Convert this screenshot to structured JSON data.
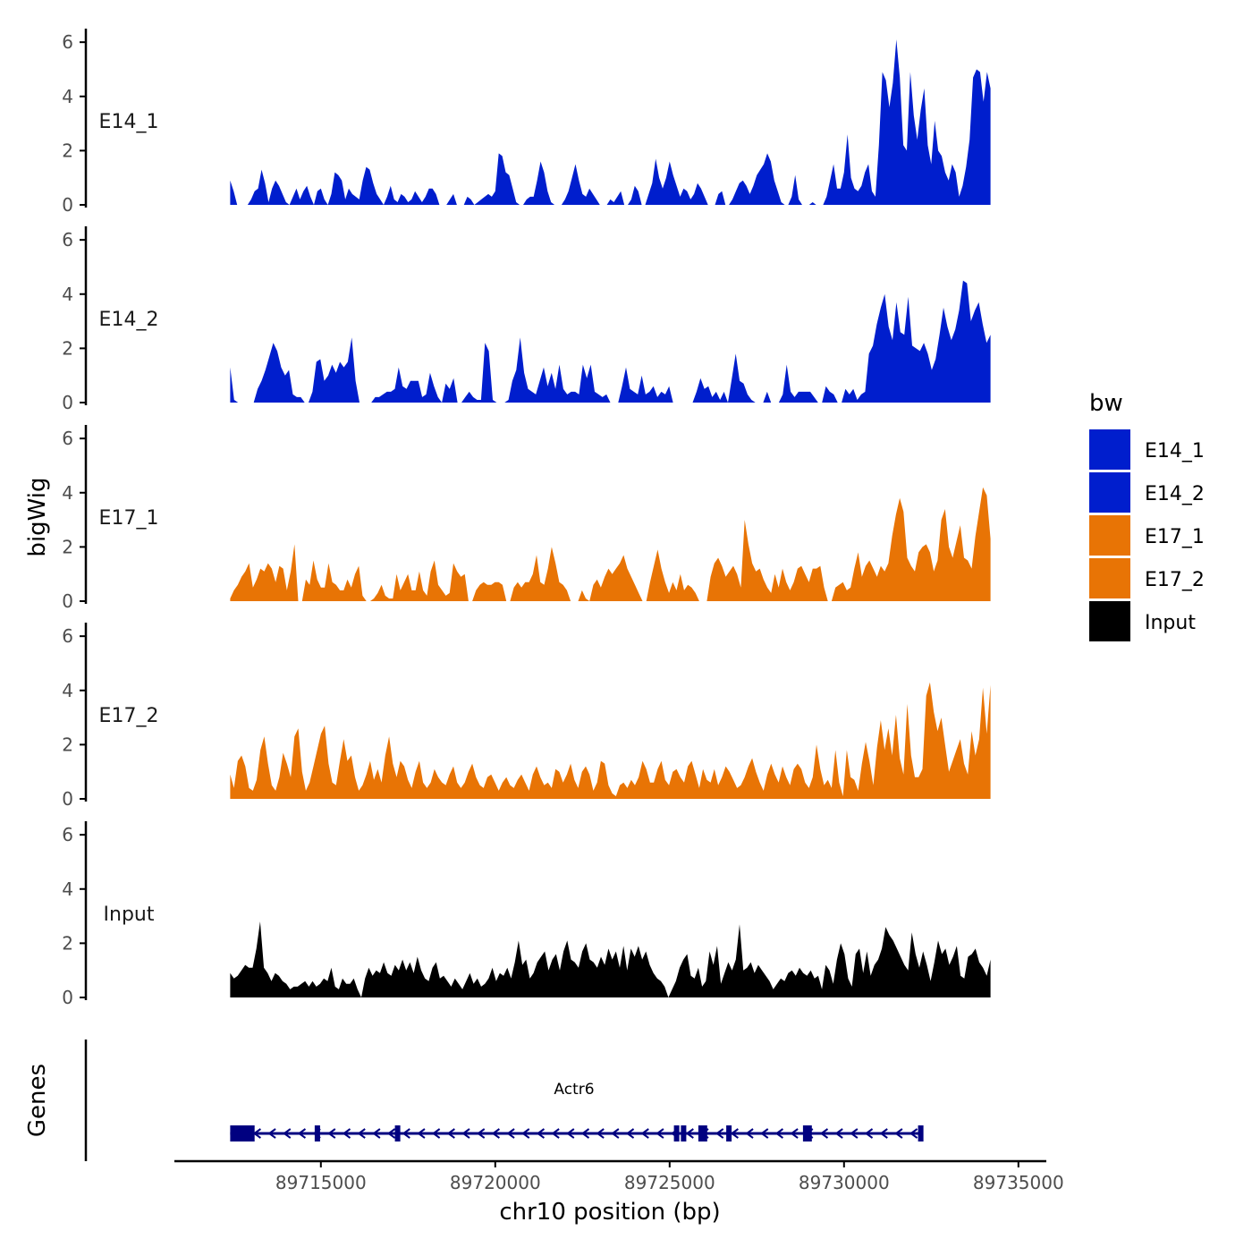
{
  "chart_data": {
    "type": "area",
    "ylabel": "bigWig",
    "xlabel": "chr10 position (bp)",
    "genes_label": "Genes",
    "legend": {
      "title": "bw",
      "entries": [
        {
          "name": "E14_1",
          "color": "#001ecd"
        },
        {
          "name": "E14_2",
          "color": "#001ecd"
        },
        {
          "name": "E17_1",
          "color": "#e87405"
        },
        {
          "name": "E17_2",
          "color": "#e87405"
        },
        {
          "name": "Input",
          "color": "#000000"
        }
      ]
    },
    "x_range": [
      89710800,
      89735800
    ],
    "x_ticks": [
      89715000,
      89720000,
      89725000,
      89730000,
      89735000
    ],
    "x_tick_labels": [
      "89715000",
      "89720000",
      "89725000",
      "89730000",
      "89735000"
    ],
    "y_range": [
      0,
      6.5
    ],
    "y_ticks": [
      0,
      2,
      4,
      6
    ],
    "y_tick_labels": [
      "0",
      "2",
      "4",
      "6"
    ],
    "track_start": 89712400,
    "track_end": 89734200,
    "series": [
      {
        "name": "E14_1",
        "color": "#001ecd",
        "values": [
          0.9,
          0.5,
          0.0,
          0.0,
          0.0,
          0.0,
          0.2,
          0.5,
          0.6,
          1.3,
          0.8,
          0.1,
          0.6,
          0.9,
          0.7,
          0.4,
          0.1,
          0.0,
          0.3,
          0.6,
          0.2,
          0.5,
          0.7,
          0.3,
          0.0,
          0.5,
          0.6,
          0.2,
          0.0,
          0.4,
          1.2,
          1.1,
          0.9,
          0.2,
          0.6,
          0.4,
          0.3,
          0.2,
          0.9,
          1.4,
          1.3,
          0.8,
          0.4,
          0.2,
          0.0,
          0.3,
          0.7,
          0.2,
          0.1,
          0.4,
          0.3,
          0.1,
          0.2,
          0.5,
          0.3,
          0.1,
          0.3,
          0.6,
          0.6,
          0.4,
          0.0,
          0.0,
          0.0,
          0.2,
          0.4,
          0.0,
          0.0,
          0.0,
          0.3,
          0.2,
          0.0,
          0.1,
          0.2,
          0.3,
          0.4,
          0.3,
          0.5,
          1.9,
          1.8,
          1.2,
          1.1,
          0.6,
          0.1,
          0.0,
          0.0,
          0.2,
          0.3,
          0.3,
          0.9,
          1.6,
          1.2,
          0.5,
          0.1,
          0.0,
          0.0,
          0.0,
          0.2,
          0.5,
          1.0,
          1.5,
          0.9,
          0.4,
          0.3,
          0.6,
          0.4,
          0.2,
          0.0,
          0.0,
          0.0,
          0.2,
          0.1,
          0.3,
          0.5,
          0.0,
          0.0,
          0.2,
          0.7,
          0.5,
          0.0,
          0.0,
          0.4,
          0.8,
          1.7,
          1.0,
          0.6,
          1.0,
          1.6,
          1.1,
          0.7,
          0.3,
          0.6,
          0.5,
          0.2,
          0.4,
          0.8,
          0.6,
          0.3,
          0.0,
          0.0,
          0.0,
          0.4,
          0.5,
          0.0,
          0.0,
          0.2,
          0.5,
          0.8,
          0.9,
          0.7,
          0.4,
          0.7,
          1.1,
          1.3,
          1.5,
          1.9,
          1.6,
          0.9,
          0.5,
          0.1,
          0.0,
          0.0,
          0.3,
          1.1,
          0.2,
          0.0,
          0.0,
          0.0,
          0.1,
          0.0,
          0.0,
          0.0,
          0.3,
          0.9,
          1.5,
          0.6,
          0.6,
          1.2,
          2.6,
          1.0,
          0.6,
          0.5,
          0.7,
          1.2,
          1.5,
          0.5,
          0.3,
          2.2,
          4.9,
          4.6,
          3.6,
          4.5,
          6.1,
          4.7,
          2.2,
          2.0,
          4.9,
          3.3,
          2.4,
          3.5,
          4.3,
          2.2,
          1.5,
          3.1,
          2.0,
          1.8,
          1.2,
          0.9,
          1.5,
          1.2,
          0.3,
          0.7,
          1.4,
          2.4,
          4.7,
          5.0,
          4.9,
          3.8,
          4.9,
          4.3
        ]
      },
      {
        "name": "E14_2",
        "color": "#001ecd",
        "values": [
          1.3,
          0.1,
          0.0,
          0.0,
          0.0,
          0.0,
          0.0,
          0.5,
          0.8,
          1.2,
          1.7,
          2.2,
          1.9,
          1.3,
          1.0,
          1.2,
          0.3,
          0.2,
          0.2,
          0.0,
          0.0,
          0.4,
          1.5,
          1.6,
          0.8,
          1.0,
          1.4,
          1.1,
          1.5,
          1.3,
          1.5,
          2.4,
          0.8,
          0.0,
          0.0,
          0.0,
          0.0,
          0.2,
          0.2,
          0.3,
          0.4,
          0.4,
          0.5,
          1.3,
          0.6,
          0.5,
          0.8,
          0.8,
          0.8,
          0.2,
          0.3,
          1.1,
          0.6,
          0.2,
          0.0,
          0.7,
          0.5,
          0.9,
          0.0,
          0.0,
          0.2,
          0.4,
          0.2,
          0.1,
          0.1,
          2.2,
          1.9,
          0.1,
          0.0,
          0.0,
          0.0,
          0.1,
          0.8,
          1.2,
          2.4,
          1.1,
          0.5,
          0.4,
          0.3,
          0.8,
          1.3,
          0.6,
          1.1,
          0.5,
          1.4,
          0.5,
          0.3,
          0.4,
          0.4,
          0.3,
          1.4,
          0.9,
          1.4,
          0.4,
          0.3,
          0.2,
          0.3,
          0.0,
          0.0,
          0.0,
          0.6,
          1.3,
          0.5,
          0.4,
          0.3,
          1.0,
          0.3,
          0.4,
          0.6,
          0.2,
          0.4,
          0.3,
          0.6,
          0.0,
          0.0,
          0.0,
          0.0,
          0.0,
          0.0,
          0.4,
          0.9,
          0.5,
          0.6,
          0.2,
          0.4,
          0.1,
          0.4,
          0.0,
          0.9,
          1.8,
          0.8,
          0.7,
          0.3,
          0.1,
          0.0,
          0.0,
          0.0,
          0.4,
          0.0,
          0.0,
          0.0,
          0.3,
          1.4,
          0.4,
          0.2,
          0.4,
          0.4,
          0.4,
          0.4,
          0.2,
          0.0,
          0.0,
          0.6,
          0.4,
          0.3,
          0.0,
          0.0,
          0.5,
          0.3,
          0.5,
          0.1,
          0.3,
          0.4,
          1.8,
          2.1,
          2.9,
          3.5,
          4.0,
          2.8,
          2.3,
          3.7,
          2.6,
          2.5,
          3.9,
          2.1,
          2.0,
          1.9,
          2.2,
          1.8,
          1.2,
          1.6,
          2.5,
          3.5,
          2.8,
          2.3,
          2.7,
          3.4,
          4.5,
          4.4,
          3.0,
          3.4,
          3.7,
          2.9,
          2.2,
          2.5
        ]
      },
      {
        "name": "E17_1",
        "color": "#e87405",
        "values": [
          0.1,
          0.4,
          0.6,
          0.9,
          1.1,
          1.4,
          0.5,
          0.8,
          1.2,
          1.1,
          1.4,
          1.2,
          0.7,
          1.3,
          1.2,
          0.4,
          1.1,
          2.1,
          0.0,
          0.0,
          0.8,
          0.6,
          1.5,
          0.8,
          0.5,
          0.5,
          1.4,
          0.7,
          0.6,
          0.4,
          0.4,
          0.8,
          0.5,
          1.0,
          1.3,
          0.2,
          0.0,
          0.0,
          0.1,
          0.3,
          0.6,
          0.2,
          0.1,
          0.1,
          1.0,
          0.4,
          0.7,
          1.0,
          0.4,
          0.4,
          1.1,
          0.4,
          0.2,
          1.1,
          1.5,
          0.6,
          0.4,
          0.2,
          0.3,
          1.4,
          1.1,
          0.9,
          1.0,
          0.0,
          0.0,
          0.4,
          0.6,
          0.7,
          0.6,
          0.6,
          0.7,
          0.7,
          0.6,
          0.0,
          0.0,
          0.5,
          0.7,
          0.5,
          0.7,
          0.7,
          1.0,
          1.7,
          0.7,
          0.6,
          1.2,
          2.0,
          1.4,
          0.7,
          0.6,
          0.4,
          0.0,
          0.0,
          0.0,
          0.4,
          0.1,
          0.0,
          0.6,
          0.8,
          0.5,
          0.9,
          1.2,
          1.0,
          1.2,
          1.4,
          1.7,
          1.2,
          0.9,
          0.6,
          0.3,
          0.0,
          0.0,
          0.7,
          1.3,
          1.9,
          1.2,
          0.7,
          0.3,
          0.7,
          0.4,
          1.0,
          0.4,
          0.6,
          0.5,
          0.3,
          0.0,
          0.0,
          0.0,
          0.9,
          1.4,
          1.6,
          1.3,
          0.9,
          1.1,
          1.3,
          1.0,
          0.5,
          3.0,
          2.1,
          1.4,
          1.1,
          1.2,
          0.8,
          0.5,
          0.3,
          1.0,
          0.5,
          1.2,
          0.7,
          0.4,
          0.7,
          1.2,
          1.3,
          1.0,
          0.7,
          1.2,
          1.2,
          1.3,
          0.5,
          0.0,
          0.0,
          0.5,
          0.6,
          0.7,
          0.4,
          0.5,
          1.2,
          1.8,
          0.9,
          1.3,
          1.5,
          1.2,
          0.9,
          1.3,
          1.1,
          1.4,
          2.4,
          3.2,
          3.8,
          3.3,
          1.6,
          1.3,
          1.1,
          1.8,
          2.0,
          2.1,
          1.8,
          1.1,
          1.5,
          3.0,
          3.4,
          2.0,
          1.6,
          2.2,
          2.8,
          1.6,
          1.5,
          1.2,
          2.4,
          3.3,
          4.2,
          3.9,
          2.3
        ]
      },
      {
        "name": "E17_2",
        "color": "#e87405",
        "values": [
          0.9,
          0.4,
          1.4,
          1.6,
          1.2,
          0.4,
          0.3,
          0.7,
          1.8,
          2.3,
          1.3,
          0.5,
          0.3,
          0.8,
          1.7,
          1.3,
          0.8,
          2.3,
          2.6,
          1.0,
          0.3,
          0.6,
          1.2,
          1.8,
          2.4,
          2.7,
          1.3,
          0.6,
          0.5,
          1.4,
          2.2,
          1.4,
          1.6,
          0.8,
          0.3,
          0.5,
          0.9,
          1.4,
          0.7,
          1.1,
          0.6,
          1.6,
          2.3,
          1.3,
          0.8,
          1.4,
          1.2,
          0.7,
          0.4,
          1.0,
          1.4,
          0.6,
          0.4,
          0.6,
          1.1,
          0.8,
          0.6,
          0.5,
          0.9,
          1.2,
          0.6,
          0.4,
          0.6,
          1.0,
          1.3,
          0.8,
          0.5,
          0.4,
          0.8,
          0.9,
          0.6,
          0.3,
          0.6,
          0.8,
          0.5,
          0.4,
          0.7,
          0.9,
          0.6,
          0.3,
          0.9,
          1.2,
          0.8,
          0.5,
          0.6,
          0.4,
          1.1,
          1.0,
          0.6,
          0.9,
          1.3,
          0.7,
          0.4,
          1.0,
          1.2,
          0.9,
          0.3,
          0.6,
          1.4,
          1.3,
          0.5,
          0.2,
          0.1,
          0.5,
          0.6,
          0.4,
          0.7,
          0.5,
          0.8,
          1.4,
          1.1,
          0.6,
          0.6,
          1.1,
          1.4,
          0.7,
          0.5,
          1.0,
          1.1,
          0.8,
          0.6,
          1.2,
          1.4,
          0.9,
          0.4,
          1.1,
          0.7,
          0.6,
          1.1,
          0.5,
          0.8,
          1.2,
          1.0,
          0.7,
          0.4,
          0.5,
          0.8,
          1.2,
          1.5,
          1.0,
          0.6,
          0.3,
          0.9,
          1.3,
          0.9,
          0.6,
          1.2,
          0.8,
          0.5,
          1.1,
          1.3,
          1.1,
          0.6,
          0.4,
          0.8,
          2.0,
          1.1,
          0.5,
          0.7,
          0.4,
          1.8,
          0.6,
          0.1,
          1.8,
          0.8,
          0.7,
          0.3,
          1.3,
          2.1,
          1.4,
          0.5,
          1.9,
          2.9,
          1.8,
          2.6,
          1.6,
          3.1,
          1.5,
          0.9,
          3.5,
          1.6,
          0.8,
          0.8,
          1.1,
          3.8,
          4.3,
          3.2,
          2.5,
          3.0,
          2.0,
          1.0,
          1.4,
          1.8,
          2.2,
          1.3,
          0.9,
          2.5,
          1.6,
          2.2,
          4.1,
          2.4,
          4.2
        ]
      },
      {
        "name": "Input",
        "color": "#000000",
        "values": [
          0.9,
          0.7,
          0.8,
          1.0,
          1.2,
          1.1,
          1.1,
          1.8,
          2.8,
          1.1,
          0.9,
          0.6,
          0.9,
          0.8,
          0.6,
          0.5,
          0.3,
          0.4,
          0.4,
          0.5,
          0.6,
          0.4,
          0.6,
          0.4,
          0.5,
          0.7,
          0.6,
          1.1,
          0.4,
          0.3,
          0.7,
          0.5,
          0.5,
          0.7,
          0.3,
          0.0,
          0.7,
          1.1,
          0.8,
          1.0,
          0.9,
          1.3,
          0.9,
          0.8,
          1.2,
          1.0,
          1.4,
          1.0,
          1.3,
          0.9,
          1.5,
          1.0,
          0.7,
          0.6,
          1.1,
          1.3,
          0.7,
          0.8,
          0.6,
          0.4,
          0.7,
          0.5,
          0.3,
          0.6,
          0.9,
          0.5,
          0.7,
          0.4,
          0.5,
          0.7,
          1.1,
          0.6,
          0.9,
          0.8,
          1.1,
          0.7,
          1.3,
          2.1,
          1.2,
          1.4,
          0.7,
          0.9,
          1.3,
          1.5,
          1.7,
          1.0,
          1.4,
          1.6,
          1.0,
          1.7,
          2.1,
          1.4,
          1.3,
          1.1,
          1.7,
          2.0,
          1.4,
          1.3,
          1.1,
          1.5,
          1.2,
          1.8,
          1.4,
          1.7,
          1.1,
          1.9,
          1.0,
          1.8,
          1.5,
          1.9,
          1.4,
          1.7,
          1.2,
          0.9,
          0.7,
          0.6,
          0.4,
          0.0,
          0.3,
          0.6,
          1.1,
          1.4,
          1.6,
          0.8,
          0.7,
          1.1,
          0.4,
          0.6,
          1.7,
          1.2,
          1.9,
          0.5,
          0.9,
          1.3,
          1.0,
          1.4,
          2.7,
          1.0,
          1.1,
          1.3,
          0.9,
          1.2,
          1.0,
          0.8,
          0.6,
          0.3,
          0.5,
          0.7,
          0.6,
          0.9,
          1.0,
          0.8,
          1.1,
          0.9,
          0.8,
          1.0,
          0.7,
          0.8,
          0.3,
          1.2,
          1.0,
          0.5,
          1.4,
          2.0,
          1.6,
          0.7,
          0.4,
          1.6,
          1.8,
          0.9,
          1.7,
          0.8,
          1.2,
          1.4,
          1.8,
          2.6,
          2.3,
          2.1,
          1.8,
          1.5,
          1.2,
          1.0,
          2.4,
          1.6,
          1.1,
          1.7,
          1.2,
          0.6,
          1.3,
          2.1,
          1.6,
          1.8,
          1.2,
          1.5,
          1.9,
          0.8,
          0.7,
          1.5,
          1.6,
          1.8,
          1.3,
          1.1,
          0.8,
          1.4
        ]
      }
    ],
    "gene": {
      "name": "Actr6",
      "strand": "-",
      "start": 89712400,
      "end": 89732200,
      "utr_block": [
        89712400,
        89713100
      ],
      "exons": [
        89714900,
        89717200,
        89725200,
        89725400,
        89725900,
        89726000,
        89726700,
        89728900,
        89729000,
        89732200
      ]
    }
  }
}
